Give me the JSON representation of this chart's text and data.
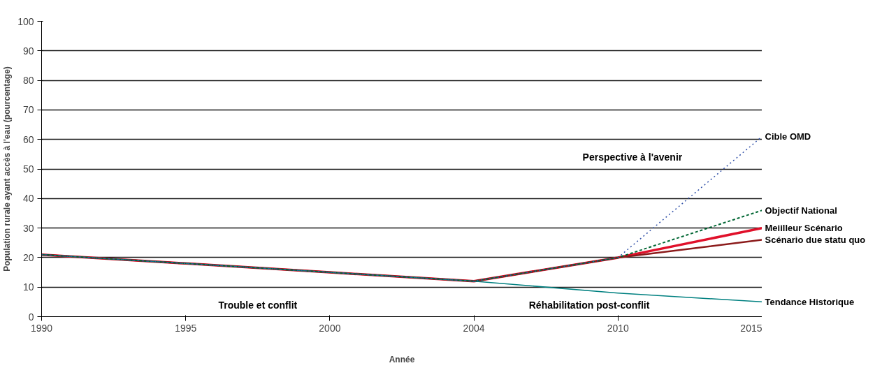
{
  "chart_data": {
    "type": "line",
    "xlabel": "Année",
    "ylabel": "Population rurale ayant accès à l'eau (pourcentage)",
    "categories": [
      "1990",
      "1995",
      "2000",
      "2004",
      "2010",
      "2015"
    ],
    "ylim": [
      0,
      100
    ],
    "yticks": [
      0,
      10,
      20,
      30,
      40,
      50,
      60,
      70,
      80,
      90,
      100
    ],
    "grid": "y",
    "series": [
      {
        "name": "Cible OMD",
        "color": "#3050a8",
        "line_style": "dotted",
        "values": [
          21,
          18,
          15,
          12,
          20,
          61
        ]
      },
      {
        "name": "Objectif National",
        "color": "#006633",
        "line_style": "dashed",
        "values": [
          21,
          18,
          15,
          12,
          20,
          36
        ]
      },
      {
        "name": "Tendance Historique",
        "color": "#008080",
        "line_style": "solid",
        "values": [
          21,
          18,
          15,
          12,
          8,
          5
        ]
      },
      {
        "name": "Scénario due statu quo",
        "color": "#8b1a1a",
        "line_style": "solid",
        "values": [
          21,
          18,
          15,
          12,
          20,
          26
        ]
      },
      {
        "name": "Meiilleur Scénario",
        "color": "#e0102a",
        "line_style": "solid",
        "values": [
          21,
          18,
          15,
          12,
          20,
          30
        ]
      }
    ],
    "annotations": [
      "Trouble et conflit",
      "Réhabilitation post-conflit",
      "Perspective à l'avenir"
    ]
  }
}
